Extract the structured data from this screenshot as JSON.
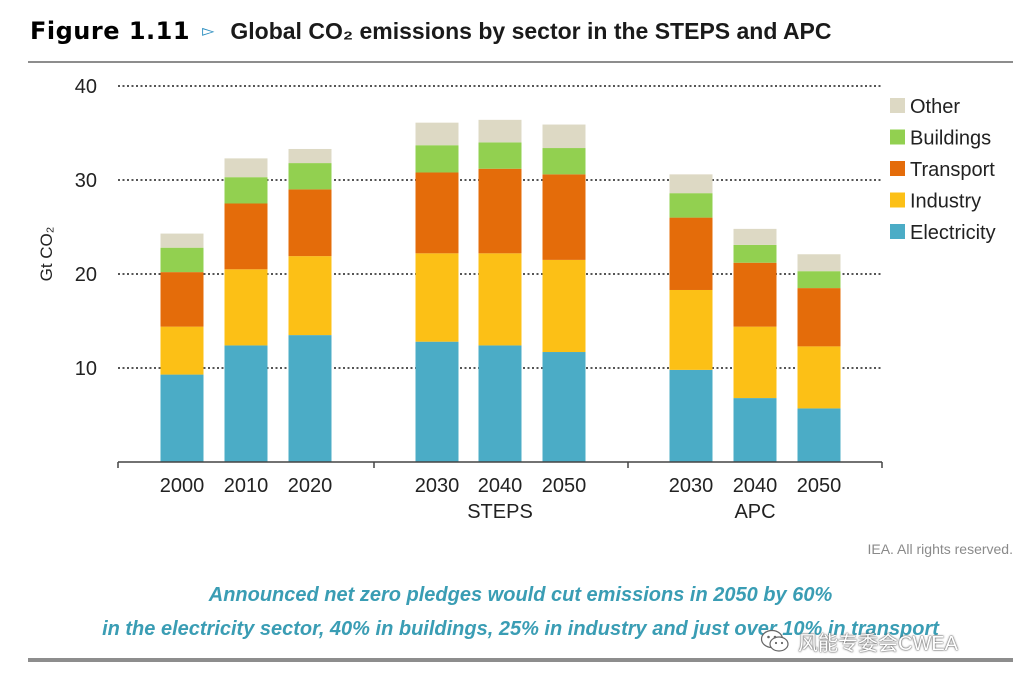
{
  "figure": {
    "label": "Figure 1.11",
    "arrow": "▻",
    "title": "Global CO₂ emissions by sector in the STEPS and APC"
  },
  "chart_data": {
    "type": "bar",
    "stacked": true,
    "ylabel": "Gt CO₂",
    "ylim": [
      0,
      40
    ],
    "yticks": [
      10,
      20,
      30,
      40
    ],
    "grid": true,
    "legend_position": "top-right",
    "categories": [
      "2000",
      "2010",
      "2020",
      "2030",
      "2040",
      "2050",
      "2030",
      "2040",
      "2050"
    ],
    "groups": [
      {
        "label": "",
        "categories": [
          "2000",
          "2010",
          "2020"
        ]
      },
      {
        "label": "STEPS",
        "categories": [
          "2030",
          "2040",
          "2050"
        ]
      },
      {
        "label": "APC",
        "categories": [
          "2030",
          "2040",
          "2050"
        ]
      }
    ],
    "series": [
      {
        "name": "Electricity",
        "color": "#4bacc6",
        "values": [
          9.3,
          12.4,
          13.5,
          12.8,
          12.4,
          11.7,
          9.8,
          6.8,
          5.7
        ]
      },
      {
        "name": "Industry",
        "color": "#fcc016",
        "values": [
          5.1,
          8.1,
          8.4,
          9.4,
          9.8,
          9.8,
          8.5,
          7.6,
          6.6
        ]
      },
      {
        "name": "Transport",
        "color": "#e46c0a",
        "values": [
          5.8,
          7.0,
          7.1,
          8.6,
          9.0,
          9.1,
          7.7,
          6.8,
          6.2
        ]
      },
      {
        "name": "Buildings",
        "color": "#92d050",
        "values": [
          2.6,
          2.8,
          2.8,
          2.9,
          2.8,
          2.8,
          2.6,
          1.9,
          1.8
        ]
      },
      {
        "name": "Other",
        "color": "#ddd9c4",
        "values": [
          1.5,
          2.0,
          1.5,
          2.4,
          2.4,
          2.5,
          2.0,
          1.7,
          1.8
        ]
      }
    ],
    "legend_order": [
      "Other",
      "Buildings",
      "Transport",
      "Industry",
      "Electricity"
    ]
  },
  "credit": "IEA. All rights reserved.",
  "caption": {
    "line1": "Announced net zero pledges would cut emissions in 2050 by 60%",
    "line2": "in the electricity sector, 40% in buildings, 25% in industry and just over 10% in transport"
  },
  "watermark": {
    "icon": "wechat-icon",
    "text": "风能专委会CWEA"
  }
}
